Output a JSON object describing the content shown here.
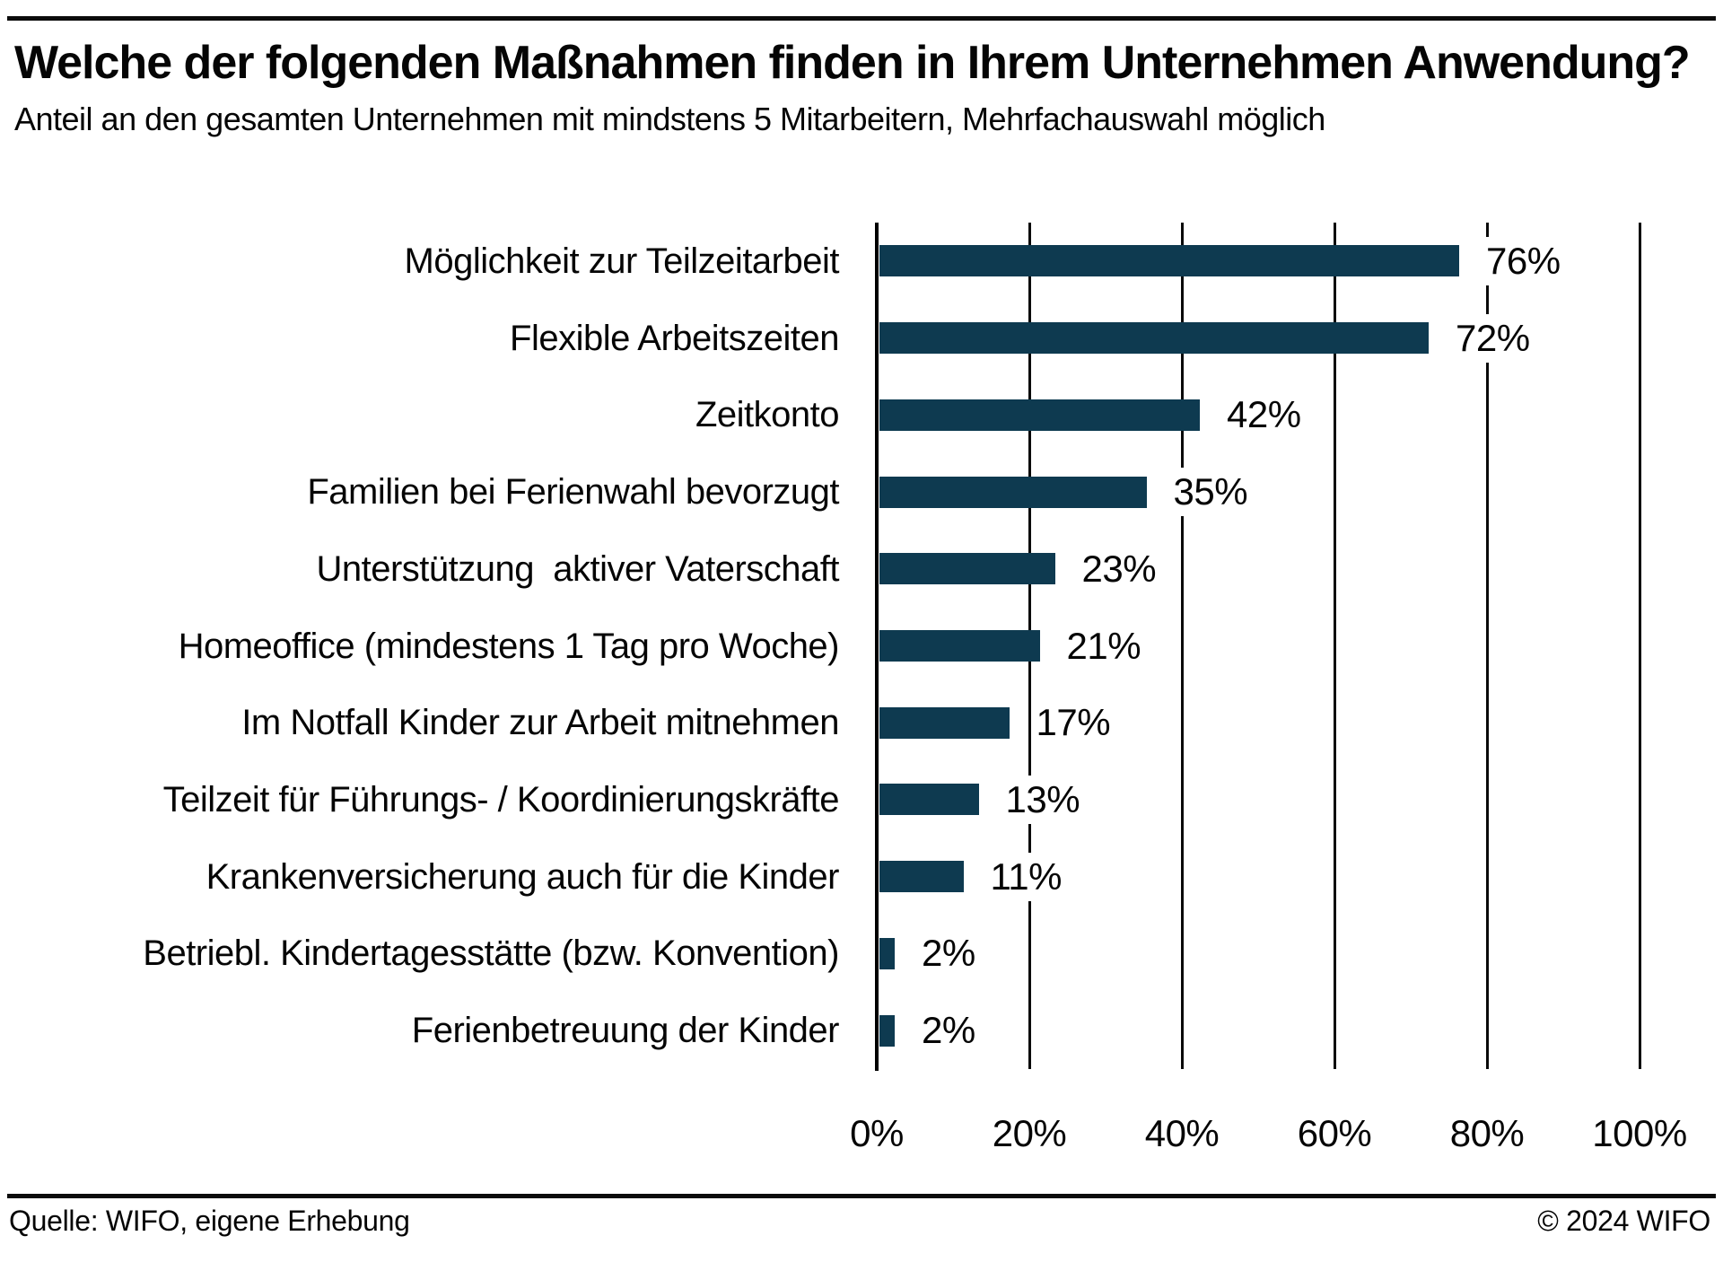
{
  "header": {
    "title": "Welche der folgenden Maßnahmen finden in Ihrem Unternehmen Anwendung?",
    "subtitle": "Anteil an den gesamten Unternehmen mit mindstens 5 Mitarbeitern, Mehrfachauswahl möglich"
  },
  "footer": {
    "source": "Quelle: WIFO, eigene Erhebung",
    "copyright": "© 2024 WIFO"
  },
  "chart_data": {
    "type": "bar",
    "orientation": "horizontal",
    "title": "Welche der folgenden Maßnahmen finden in Ihrem Unternehmen Anwendung?",
    "subtitle": "Anteil an den gesamten Unternehmen mit mindstens 5 Mitarbeitern, Mehrfachauswahl möglich",
    "categories": [
      "Möglichkeit zur Teilzeitarbeit",
      "Flexible Arbeitszeiten",
      "Zeitkonto",
      "Familien bei Ferienwahl bevorzugt",
      "Unterstützung  aktiver Vaterschaft",
      "Homeoffice (mindestens 1 Tag pro Woche)",
      "Im Notfall Kinder zur Arbeit mitnehmen",
      "Teilzeit für Führungs- / Koordinierungskräfte",
      "Krankenversicherung auch für die Kinder",
      "Betriebl. Kindertagesstätte (bzw. Konvention)",
      "Ferienbetreuung der Kinder"
    ],
    "values": [
      76,
      72,
      42,
      35,
      23,
      21,
      17,
      13,
      11,
      2,
      2
    ],
    "value_labels": [
      "76%",
      "72%",
      "42%",
      "35%",
      "23%",
      "21%",
      "17%",
      "13%",
      "11%",
      "2%",
      "2%"
    ],
    "x_ticks": {
      "labels": [
        "0%",
        "20%",
        "40%",
        "60%",
        "80%",
        "100%"
      ],
      "values": [
        0,
        20,
        40,
        60,
        80,
        100
      ]
    },
    "xlim": [
      0,
      100
    ],
    "xlabel": "",
    "ylabel": "",
    "grid": true,
    "legend": false,
    "bar_color": "#0e3a50",
    "axis_color": "#000000",
    "text_color": "#050505"
  }
}
